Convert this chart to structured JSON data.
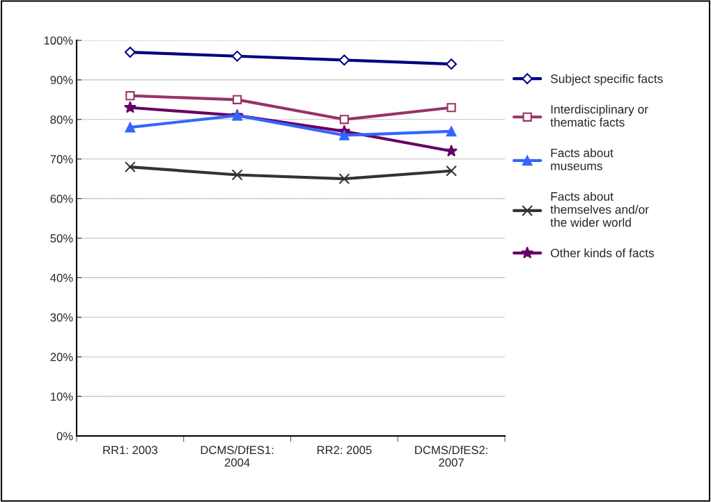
{
  "chart_data": {
    "type": "line",
    "categories": [
      "RR1: 2003",
      "DCMS/DfES1:\n2004",
      "RR2: 2005",
      "DCMS/DfES2:\n2007"
    ],
    "series": [
      {
        "name": "Subject specific facts",
        "color": "#000080",
        "marker": "diamond",
        "values": [
          97,
          96,
          95,
          94
        ]
      },
      {
        "name": "Interdisciplinary or\nthematic facts",
        "color": "#993366",
        "marker": "square",
        "values": [
          86,
          85,
          80,
          83
        ]
      },
      {
        "name": "Facts about\nmuseums",
        "color": "#3366ff",
        "marker": "triangle",
        "values": [
          78,
          81,
          76,
          77
        ]
      },
      {
        "name": "Facts about\nthemselves and/or\nthe wider world",
        "color": "#333333",
        "marker": "cross",
        "values": [
          68,
          66,
          65,
          67
        ]
      },
      {
        "name": "Other kinds of facts",
        "color": "#660066",
        "marker": "star",
        "values": [
          83,
          81,
          77,
          72
        ]
      }
    ],
    "ylim": [
      0,
      100
    ],
    "yticks": [
      {
        "value": 0,
        "label": "0%"
      },
      {
        "value": 10,
        "label": "10%"
      },
      {
        "value": 20,
        "label": "20%"
      },
      {
        "value": 30,
        "label": "30%"
      },
      {
        "value": 40,
        "label": "40%"
      },
      {
        "value": 50,
        "label": "50%"
      },
      {
        "value": 60,
        "label": "60%"
      },
      {
        "value": 70,
        "label": "70%"
      },
      {
        "value": 80,
        "label": "80%"
      },
      {
        "value": 90,
        "label": "90%"
      },
      {
        "value": 100,
        "label": "100%"
      }
    ],
    "grid": "y",
    "legend": "right",
    "line_style": "solid"
  }
}
